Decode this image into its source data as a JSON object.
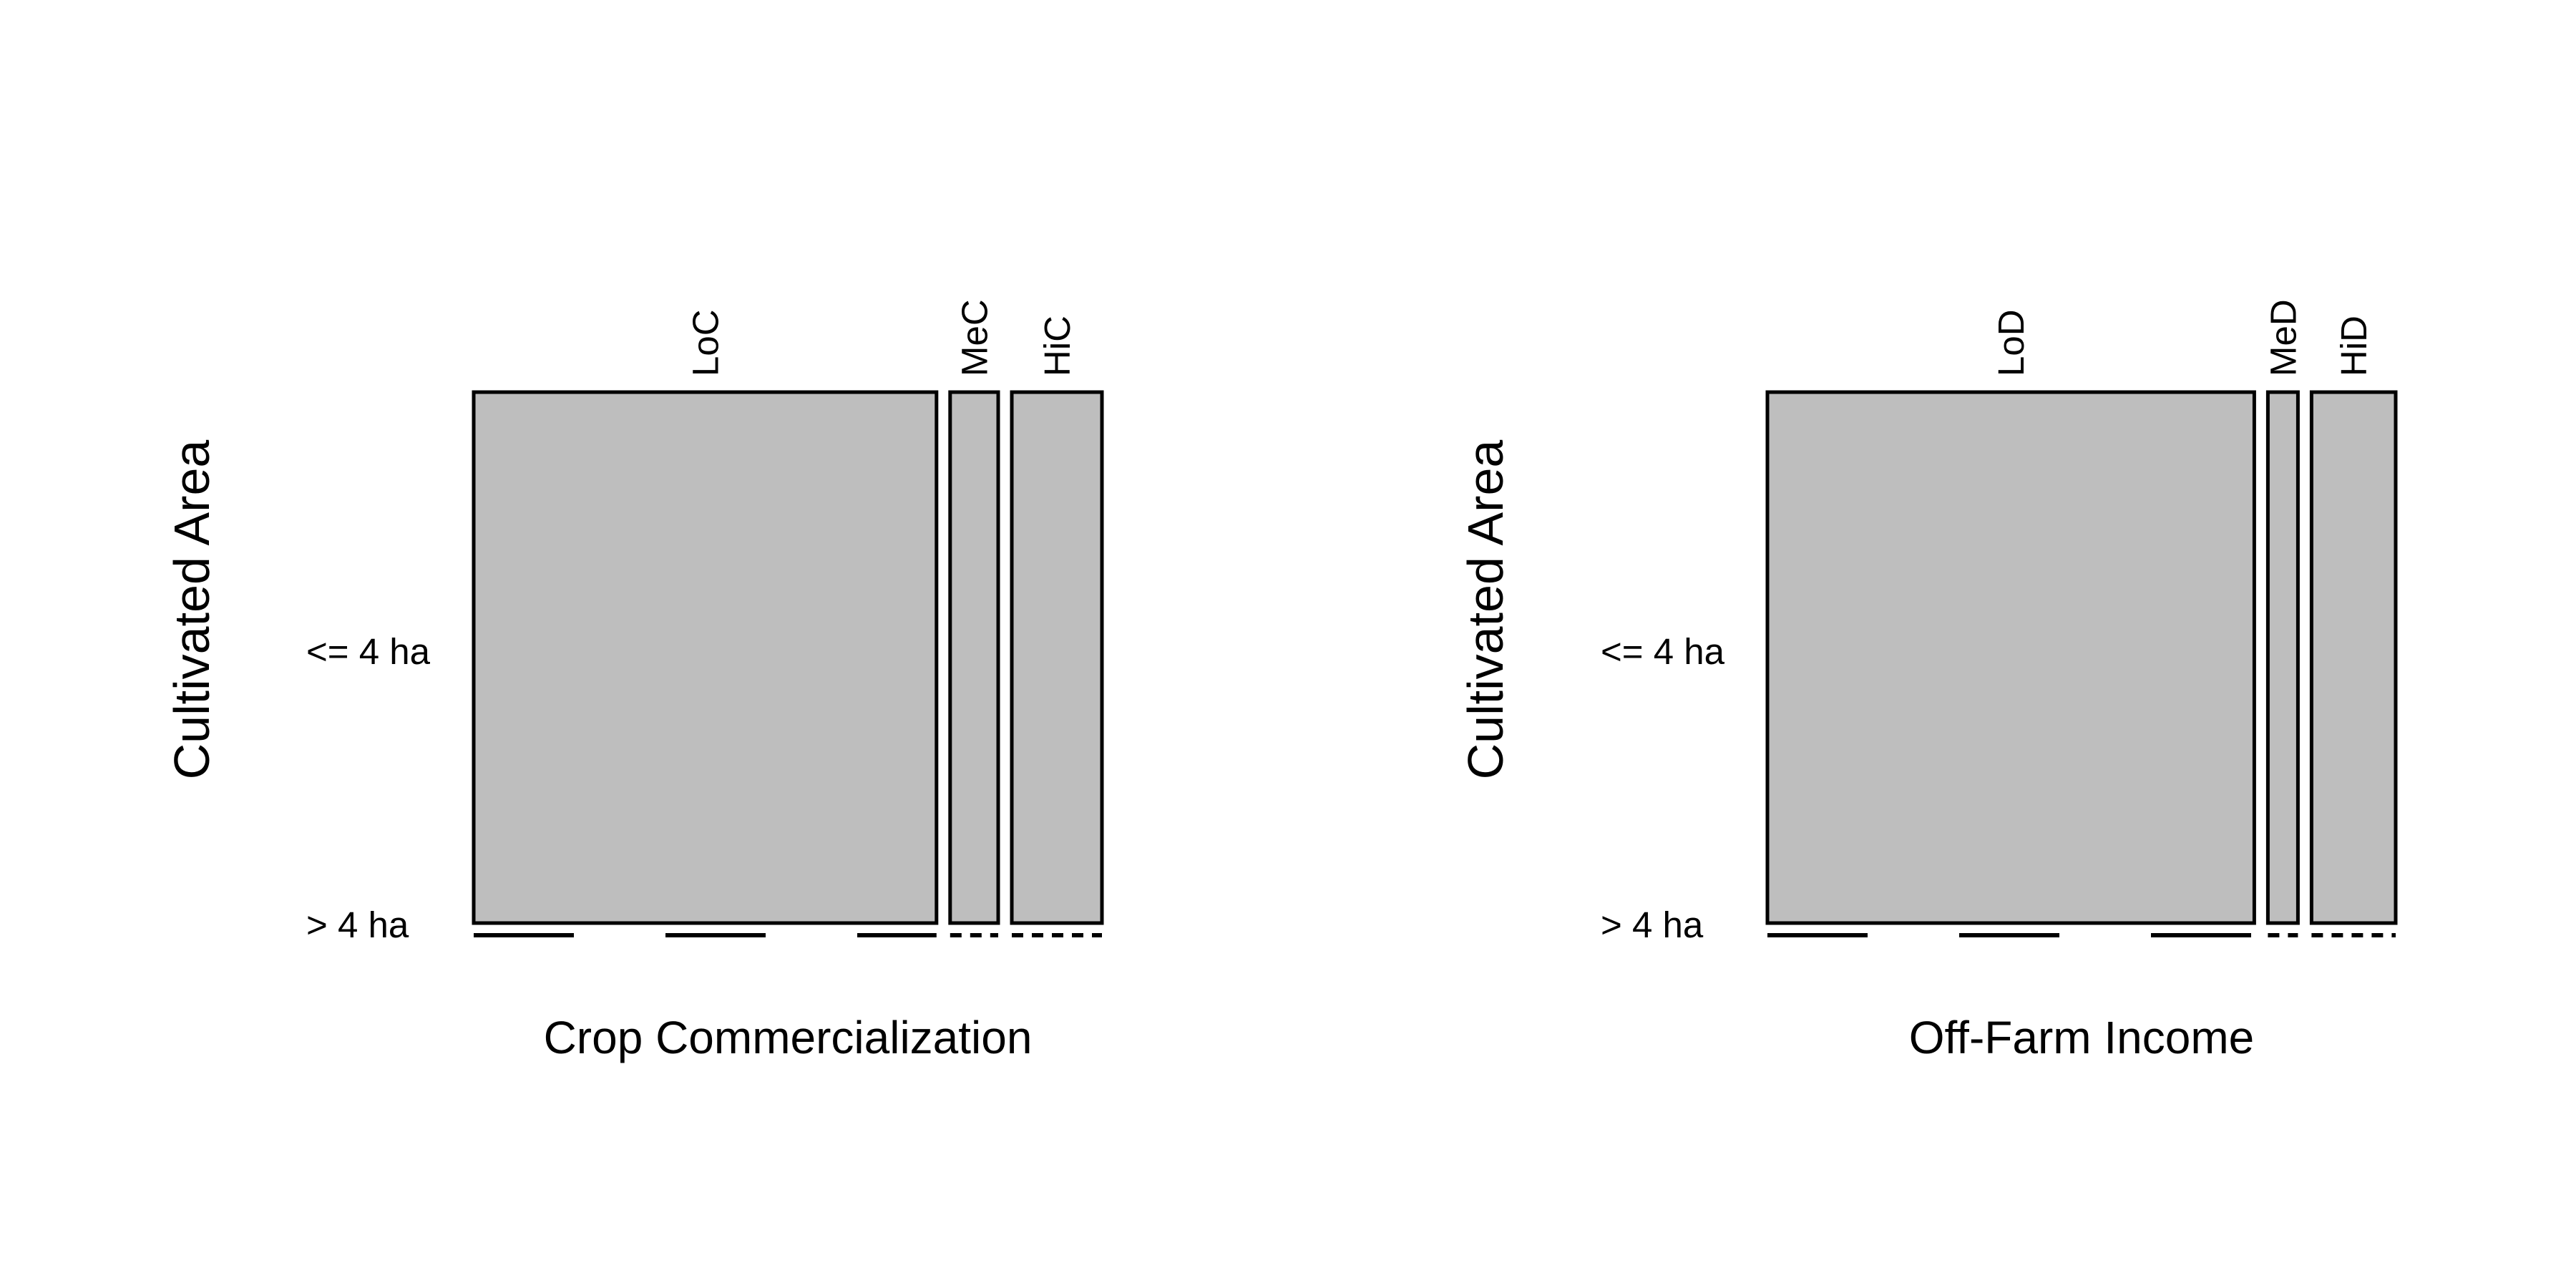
{
  "chart_data": [
    {
      "type": "mosaic",
      "xlabel": "Crop Commercialization",
      "ylabel": "Cultivated Area",
      "x_categories": [
        "LoC",
        "MeC",
        "HiC"
      ],
      "y_categories": [
        "<= 4 ha",
        "> 4 ha"
      ],
      "column_shares": [
        0.77,
        0.08,
        0.15
      ],
      "cells": [
        {
          "x": "LoC",
          "y": "<= 4 ha",
          "share_of_column": 1.0
        },
        {
          "x": "LoC",
          "y": "> 4 ha",
          "share_of_column": 0.0
        },
        {
          "x": "MeC",
          "y": "<= 4 ha",
          "share_of_column": 1.0
        },
        {
          "x": "MeC",
          "y": "> 4 ha",
          "share_of_column": 0.0
        },
        {
          "x": "HiC",
          "y": "<= 4 ha",
          "share_of_column": 1.0
        },
        {
          "x": "HiC",
          "y": "> 4 ha",
          "share_of_column": 0.0
        }
      ],
      "fill_color": "#bebebe"
    },
    {
      "type": "mosaic",
      "xlabel": "Off-Farm Income",
      "ylabel": "Cultivated Area",
      "x_categories": [
        "LoD",
        "MeD",
        "HiD"
      ],
      "y_categories": [
        "<= 4 ha",
        "> 4 ha"
      ],
      "column_shares": [
        0.81,
        0.05,
        0.14
      ],
      "cells": [
        {
          "x": "LoD",
          "y": "<= 4 ha",
          "share_of_column": 1.0
        },
        {
          "x": "LoD",
          "y": "> 4 ha",
          "share_of_column": 0.0
        },
        {
          "x": "MeD",
          "y": "<= 4 ha",
          "share_of_column": 1.0
        },
        {
          "x": "MeD",
          "y": "> 4 ha",
          "share_of_column": 0.0
        },
        {
          "x": "HiD",
          "y": "<= 4 ha",
          "share_of_column": 1.0
        },
        {
          "x": "HiD",
          "y": "> 4 ha",
          "share_of_column": 0.0
        }
      ],
      "fill_color": "#bebebe"
    }
  ]
}
